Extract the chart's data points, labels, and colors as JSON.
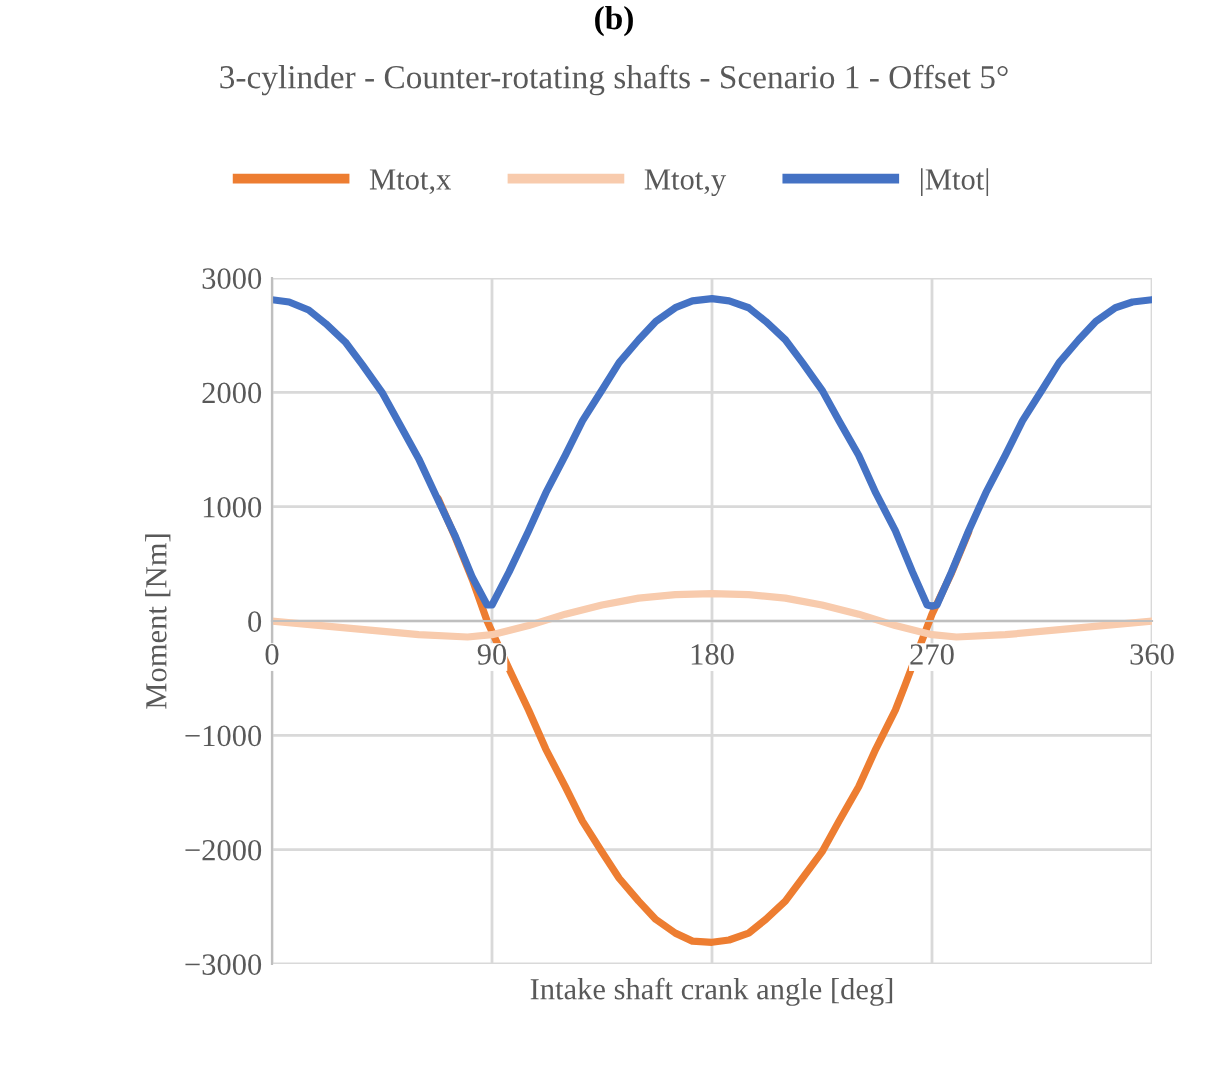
{
  "chart_data": {
    "type": "line",
    "title": "3-cylinder - Counter-rotating shafts - Scenario 1 - Offset 5°",
    "xlabel": "Intake shaft crank angle [deg]",
    "ylabel": "Moment [Nm]",
    "annotations": [
      "(b)"
    ],
    "xlim": [
      0,
      360
    ],
    "xticks": [
      0,
      90,
      180,
      270,
      360
    ],
    "ylim": [
      -3000,
      3000
    ],
    "yticks": [
      {
        "value": -3000,
        "label": "−3000"
      },
      {
        "value": -2000,
        "label": "−2000"
      },
      {
        "value": -1000,
        "label": "−1000"
      },
      0,
      1000,
      2000,
      3000
    ],
    "grid": true,
    "legend": "top",
    "marker": "none",
    "line_style": "solid",
    "series": [
      {
        "name": "Mtot,x",
        "color": "#ed7d31",
        "x": [
          68,
          75,
          82,
          88,
          97,
          105,
          112,
          120,
          127,
          135,
          142,
          150,
          157,
          165,
          172,
          180,
          187,
          195,
          202,
          210,
          217,
          225,
          232,
          240,
          247,
          255,
          259,
          270,
          278,
          285
        ],
        "values": [
          1070,
          730,
          360,
          0,
          -420,
          -780,
          -1120,
          -1450,
          -1750,
          -2020,
          -2250,
          -2450,
          -2610,
          -2730,
          -2800,
          -2810,
          -2790,
          -2730,
          -2610,
          -2450,
          -2250,
          -2020,
          -1750,
          -1450,
          -1120,
          -780,
          -560,
          60,
          420,
          780
        ]
      },
      {
        "name": "Mtot,y",
        "color": "#f8cbad",
        "x": [
          0,
          30,
          60,
          80,
          90,
          105,
          120,
          135,
          150,
          165,
          180,
          195,
          210,
          225,
          240,
          255,
          270,
          280,
          300,
          330,
          360
        ],
        "values": [
          0,
          -60,
          -120,
          -140,
          -120,
          -40,
          60,
          140,
          200,
          230,
          240,
          230,
          200,
          140,
          60,
          -40,
          -120,
          -140,
          -120,
          -60,
          0
        ]
      },
      {
        "name": "|Mtot|",
        "color": "#4472c4",
        "x": [
          0,
          7,
          15,
          22,
          30,
          37,
          45,
          52,
          60,
          67,
          75,
          82,
          88,
          90,
          97,
          105,
          112,
          120,
          127,
          135,
          142,
          150,
          157,
          165,
          172,
          180,
          187,
          195,
          202,
          210,
          217,
          225,
          232,
          240,
          247,
          255,
          262,
          268,
          270,
          272,
          278,
          285,
          292,
          300,
          307,
          315,
          322,
          330,
          337,
          345,
          352,
          360
        ],
        "values": [
          2810,
          2790,
          2720,
          2600,
          2440,
          2240,
          2000,
          1730,
          1420,
          1100,
          740,
          380,
          140,
          140,
          430,
          790,
          1120,
          1450,
          1750,
          2020,
          2260,
          2460,
          2620,
          2740,
          2800,
          2820,
          2800,
          2740,
          2620,
          2460,
          2260,
          2020,
          1750,
          1450,
          1120,
          790,
          430,
          140,
          130,
          140,
          430,
          790,
          1120,
          1450,
          1750,
          2020,
          2260,
          2460,
          2620,
          2740,
          2790,
          2810
        ]
      }
    ]
  }
}
